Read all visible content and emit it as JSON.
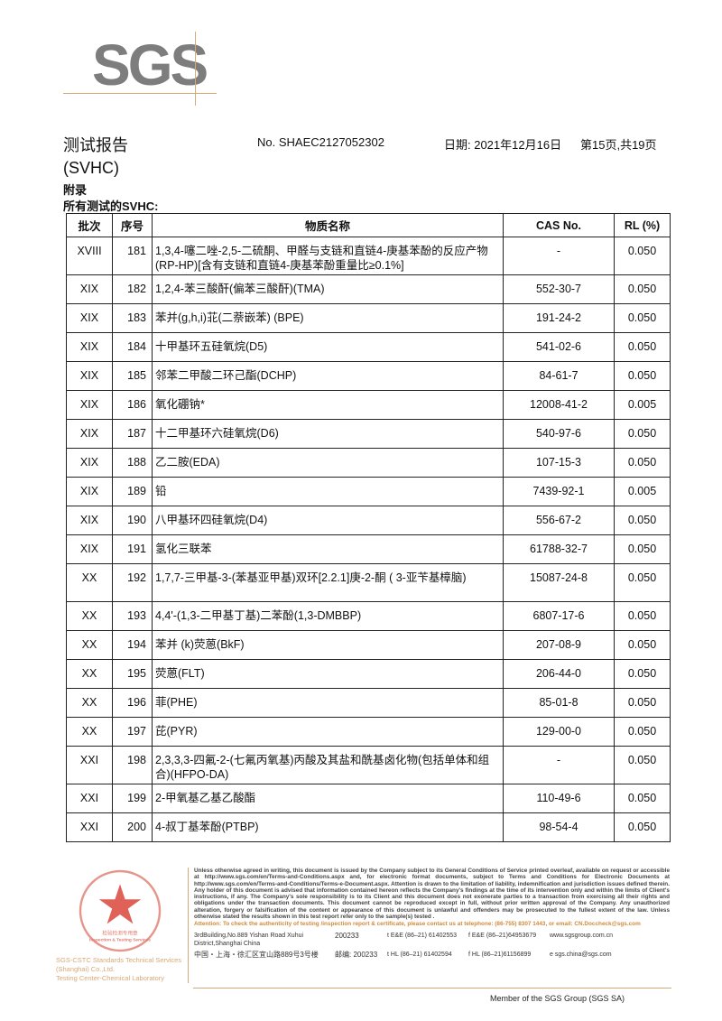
{
  "logo": "SGS",
  "header": {
    "title": "测试报告",
    "report_no": "No. SHAEC2127052302",
    "date": "日期: 2021年12月16日",
    "page": "第15页,共19页",
    "subtitle": "(SVHC)",
    "appendix": "附录",
    "all_tested": "所有测试的SVHC:"
  },
  "table": {
    "columns": [
      "批次",
      "序号",
      "物质名称",
      "CAS No.",
      "RL (%)"
    ],
    "rows": [
      {
        "batch": "XVIII",
        "no": "181",
        "name": "1,3,4-噻二唑-2,5-二硫酮、甲醛与支链和直链4-庚基苯酚的反应产物(RP-HP)[含有支链和直链4-庚基苯酚重量比≥0.1%]",
        "cas": "-",
        "rl": "0.050",
        "double": true
      },
      {
        "batch": "XIX",
        "no": "182",
        "name": "1,2,4-苯三酸酐(偏苯三酸酐)(TMA)",
        "cas": "552-30-7",
        "rl": "0.050"
      },
      {
        "batch": "XIX",
        "no": "183",
        "name": "苯并(g,h,i)苝(二萘嵌苯) (BPE)",
        "cas": "191-24-2",
        "rl": "0.050"
      },
      {
        "batch": "XIX",
        "no": "184",
        "name": "十甲基环五硅氧烷(D5)",
        "cas": "541-02-6",
        "rl": "0.050"
      },
      {
        "batch": "XIX",
        "no": "185",
        "name": "邻苯二甲酸二环己酯(DCHP)",
        "cas": "84-61-7",
        "rl": "0.050"
      },
      {
        "batch": "XIX",
        "no": "186",
        "name": "氧化硼钠*",
        "cas": "12008-41-2",
        "rl": "0.005"
      },
      {
        "batch": "XIX",
        "no": "187",
        "name": "十二甲基环六硅氧烷(D6)",
        "cas": "540-97-6",
        "rl": "0.050"
      },
      {
        "batch": "XIX",
        "no": "188",
        "name": "乙二胺(EDA)",
        "cas": "107-15-3",
        "rl": "0.050"
      },
      {
        "batch": "XIX",
        "no": "189",
        "name": "铅",
        "cas": "7439-92-1",
        "rl": "0.005"
      },
      {
        "batch": "XIX",
        "no": "190",
        "name": "八甲基环四硅氧烷(D4)",
        "cas": "556-67-2",
        "rl": "0.050"
      },
      {
        "batch": "XIX",
        "no": "191",
        "name": "氢化三联苯",
        "cas": "61788-32-7",
        "rl": "0.050"
      },
      {
        "batch": "XX",
        "no": "192",
        "name": "1,7,7-三甲基-3-(苯基亚甲基)双环[2.2.1]庚-2-酮 ( 3-亚苄基樟脑)",
        "cas": "15087-24-8",
        "rl": "0.050",
        "double": true
      },
      {
        "batch": "XX",
        "no": "193",
        "name": "4,4'-(1,3-二甲基丁基)二苯酚(1,3-DMBBP)",
        "cas": "6807-17-6",
        "rl": "0.050"
      },
      {
        "batch": "XX",
        "no": "194",
        "name": "苯并 (k)荧蒽(BkF)",
        "cas": "207-08-9",
        "rl": "0.050"
      },
      {
        "batch": "XX",
        "no": "195",
        "name": "荧蒽(FLT)",
        "cas": "206-44-0",
        "rl": "0.050"
      },
      {
        "batch": "XX",
        "no": "196",
        "name": "菲(PHE)",
        "cas": "85-01-8",
        "rl": "0.050"
      },
      {
        "batch": "XX",
        "no": "197",
        "name": "芘(PYR)",
        "cas": "129-00-0",
        "rl": "0.050"
      },
      {
        "batch": "XXI",
        "no": "198",
        "name": "2,3,3,3-四氟-2-(七氟丙氧基)丙酸及其盐和酰基卤化物(包括单体和组合)(HFPO-DA)",
        "cas": "-",
        "rl": "0.050",
        "double": true
      },
      {
        "batch": "XXI",
        "no": "199",
        "name": "2-甲氧基乙基乙酸酯",
        "cas": "110-49-6",
        "rl": "0.050"
      },
      {
        "batch": "XXI",
        "no": "200",
        "name": "4-叔丁基苯酚(PTBP)",
        "cas": "98-54-4",
        "rl": "0.050"
      }
    ]
  },
  "footer": {
    "seal_text": "通标标准技术服务(上海)有限公司 检验检测专用章 Inspection & Testing Services",
    "company_line1": "SGS-CSTC Standards Technical Services (Shanghai) Co.,Ltd.",
    "company_line2": "Testing Center-Chemical Laboratory",
    "terms": "Unless otherwise agreed in writing, this document is issued by the Company subject to its General Conditions of Service printed overleaf, available on request or accessible at http://www.sgs.com/en/Terms-and-Conditions.aspx and, for electronic format documents, subject to Terms and Conditions for Electronic Documents at http://www.sgs.com/en/Terms-and-Conditions/Terms-e-Document.aspx. Attention is drawn to the limitation of liability, indemnification and jurisdiction issues defined therein. Any holder of this document is advised that information contained hereon reflects the Company's findings at the time of its intervention only and within the limits of Client's instructions, if any. The Company's sole responsibility is to its Client and this document does not exonerate parties to a transaction from exercising all their rights and obligations under the transaction documents. This document cannot be reproduced except in full, without prior written approval of the Company. Any unauthorized alteration, forgery or falsification of the content or appearance of this document is unlawful and offenders may be prosecuted to the fullest extent of the law. Unless otherwise stated the results shown in this test report refer only to the sample(s) tested .",
    "attention": "Attention: To check the authenticity of testing /inspection report & certificate, please contact us at telephone: (86-755) 8307 1443, or email: CN.Doccheck@sgs.com",
    "address_en": "3rdBuilding,No.889 Yishan Road Xuhui District,Shanghai China",
    "postcode_en": "200233",
    "address_cn": "中国・上海・徐汇区宜山路889号3号楼",
    "postcode_cn": "邮编: 200233",
    "tel1": "t E&E (86–21) 61402553",
    "fax1": "f E&E (86–21)64953679",
    "web": "www.sgsgroup.com.cn",
    "tel2": "t HL (86–21) 61402594",
    "fax2": "f HL (86–21)61156899",
    "email": "e  sgs.china@sgs.com",
    "member": "Member of the SGS Group (SGS SA)"
  },
  "colors": {
    "logo_gray": "#7d7d7d",
    "accent_tan": "#d9a878",
    "attention_orange": "#d08a3a",
    "seal_red": "#d9453a"
  }
}
